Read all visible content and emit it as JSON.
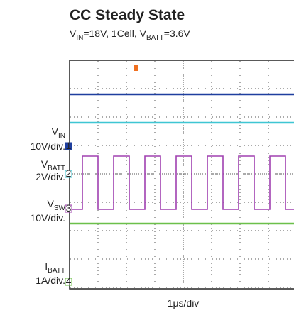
{
  "chart_data": {
    "type": "scope",
    "title": "CC Steady State",
    "subtitle": [
      {
        "text": "V"
      },
      {
        "text": "IN",
        "sub": true
      },
      {
        "text": "=18V, 1Cell, V"
      },
      {
        "text": "BATT",
        "sub": true
      },
      {
        "text": "=3.6V"
      }
    ],
    "channels": [
      {
        "name": "V",
        "sub": "IN",
        "scale": "10V/div.",
        "marker": "1",
        "color": "#1f3f9f"
      },
      {
        "name": "V",
        "sub": "BATT",
        "scale": "2V/div.",
        "marker": "2",
        "color": "#3fc6d3"
      },
      {
        "name": "V",
        "sub": "SW",
        "scale": "10V/div.",
        "marker": "3",
        "color": "#a040b0"
      },
      {
        "name": "I",
        "sub": "BATT",
        "scale": "1A/div.",
        "marker": "4",
        "color": "#6cc04a"
      }
    ],
    "x_label": "1μs/div"
  }
}
